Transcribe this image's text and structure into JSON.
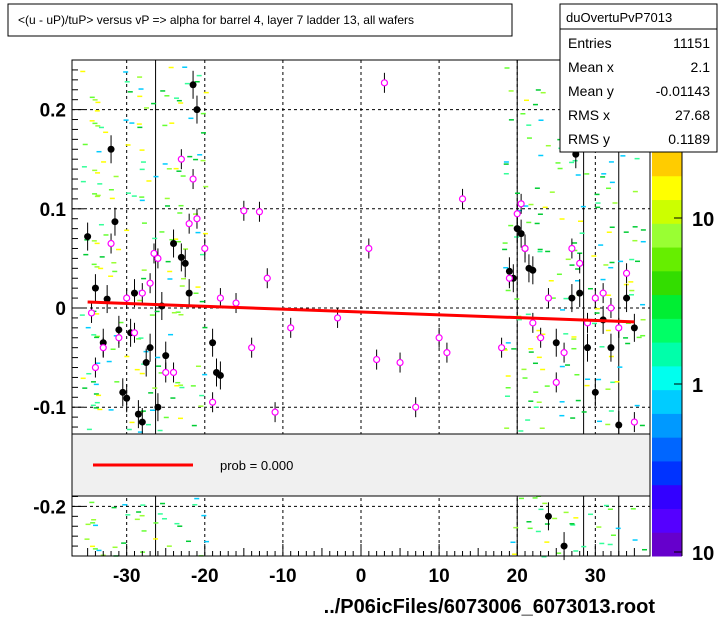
{
  "title": "<(u - uP)/tuP> versus  vP => alpha for barrel 4, layer 7 ladder 13, all wafers",
  "footer": "../P06icFiles/6073006_6073013.root",
  "stats": {
    "name": "duOvertuPvP7013",
    "rows": [
      {
        "label": "Entries",
        "value": "11151"
      },
      {
        "label": "Mean x",
        "value": "2.1"
      },
      {
        "label": "Mean y",
        "value": "-0.01143"
      },
      {
        "label": "RMS x",
        "value": "27.68"
      },
      {
        "label": "RMS y",
        "value": "0.1189"
      }
    ]
  },
  "fit_legend": {
    "text": "prob = 0.000",
    "color": "#ff0000"
  },
  "colors": {
    "fit": "#ff0000",
    "marker_black": "#000000",
    "marker_open": "#ff00ff",
    "frame": "#000000"
  },
  "chart_data": {
    "type": "scatter",
    "title": "<(u - uP)/tuP> versus  vP => alpha for barrel 4, layer 7 ladder 13, all wafers",
    "xlabel": "",
    "ylabel": "",
    "xlim": [
      -37,
      37
    ],
    "ylim": [
      -0.25,
      0.25
    ],
    "x_ticks": [
      -30,
      -20,
      -10,
      0,
      10,
      20,
      30
    ],
    "x_tick_labels": [
      "-30",
      "-20",
      "-10",
      "0",
      "10",
      "20",
      "30"
    ],
    "y_ticks": [
      -0.2,
      -0.1,
      0,
      0.1,
      0.2
    ],
    "y_tick_labels": [
      "-0.2",
      "-0.1",
      "0",
      "0.1",
      "0.2"
    ],
    "grid": true,
    "colorbar": {
      "scale": "log",
      "labels": [
        "10",
        "1",
        "10"
      ]
    },
    "fit_line": {
      "x": [
        -35,
        35
      ],
      "y": [
        0.006,
        -0.014
      ]
    },
    "series": [
      {
        "marker": "filled-circle",
        "x": [
          -35,
          -34,
          -33,
          -32.5,
          -32,
          -31.5,
          -31,
          -30.5,
          -30,
          -29.5,
          -29,
          -28.5,
          -28,
          -27.5,
          -27,
          -26,
          -25.5,
          -25,
          -24,
          -23,
          -22.5,
          -22,
          -21.5,
          -21,
          -19,
          -18.5,
          -18,
          19,
          19.5,
          20,
          20.5,
          21,
          21.5,
          22,
          24,
          25,
          26,
          27,
          27.5,
          28,
          29,
          30,
          31,
          32,
          33,
          34,
          35
        ],
        "y": [
          0.072,
          0.02,
          -0.035,
          0.009,
          0.16,
          0.087,
          -0.022,
          -0.085,
          -0.091,
          -0.025,
          0.015,
          -0.107,
          -0.115,
          -0.055,
          -0.04,
          -0.1,
          0.002,
          -0.048,
          0.065,
          0.051,
          0.045,
          0.015,
          0.225,
          0.2,
          -0.035,
          -0.065,
          -0.068,
          0.037,
          0.03,
          0.08,
          0.075,
          0.06,
          0.04,
          0.038,
          -0.21,
          -0.035,
          -0.24,
          0.01,
          0.155,
          0.015,
          -0.04,
          -0.085,
          -0.012,
          -0.04,
          -0.118,
          0.01,
          -0.02
        ]
      },
      {
        "marker": "open-circle",
        "x": [
          -34.5,
          -34,
          -33,
          -32,
          -31,
          -30,
          -29,
          -28,
          -27,
          -26.5,
          -26,
          -25,
          -24,
          -23,
          -22,
          -21.5,
          -21,
          -20,
          -19,
          -18,
          -16,
          -15,
          -14,
          -13,
          -12,
          -11,
          -9,
          -3,
          1,
          2,
          3,
          5,
          7,
          10,
          11,
          13,
          18,
          19,
          20,
          20.5,
          21,
          22,
          23,
          24,
          25,
          26,
          27,
          28,
          29,
          30,
          31,
          32,
          33,
          34,
          35
        ],
        "y": [
          -0.005,
          -0.06,
          -0.04,
          0.065,
          -0.03,
          0.01,
          -0.025,
          0.015,
          0.025,
          0.055,
          0.05,
          -0.065,
          -0.065,
          0.15,
          0.085,
          0.13,
          0.09,
          0.06,
          -0.095,
          0.01,
          0.005,
          0.098,
          -0.04,
          0.097,
          0.03,
          -0.105,
          -0.02,
          -0.01,
          0.06,
          -0.052,
          0.227,
          -0.055,
          -0.1,
          -0.03,
          -0.045,
          0.11,
          -0.04,
          0.03,
          0.095,
          0.105,
          0.06,
          -0.015,
          -0.03,
          0.01,
          -0.075,
          -0.045,
          0.06,
          0.045,
          -0.015,
          0.01,
          0.015,
          0.0,
          -0.02,
          0.035,
          -0.115
        ]
      }
    ],
    "legend": {
      "position": "bottom-inset",
      "entries": [
        "prob = 0.000"
      ]
    }
  }
}
